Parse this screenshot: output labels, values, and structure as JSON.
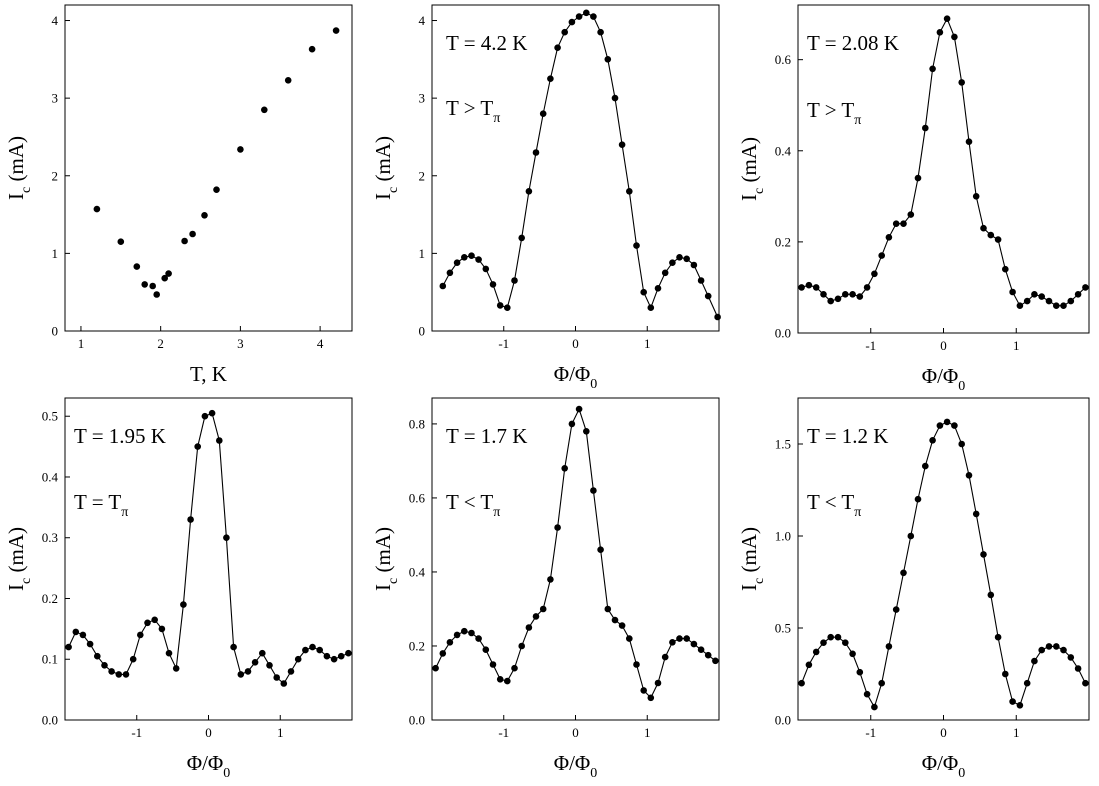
{
  "chart_data": [
    {
      "id": "a",
      "type": "scatter",
      "connect": false,
      "xlabel": {
        "main": "T, K"
      },
      "ylabel": {
        "main": "I",
        "sub": "c",
        "tail": " (mA)"
      },
      "xlim": [
        0.8,
        4.4
      ],
      "ylim": [
        0,
        4.2
      ],
      "xticks": [
        {
          "v": 1,
          "t": "1"
        },
        {
          "v": 2,
          "t": "2"
        },
        {
          "v": 3,
          "t": "3"
        },
        {
          "v": 4,
          "t": "4"
        }
      ],
      "yticks": [
        {
          "v": 0,
          "t": "0"
        },
        {
          "v": 1,
          "t": "1"
        },
        {
          "v": 2,
          "t": "2"
        },
        {
          "v": 3,
          "t": "3"
        },
        {
          "v": 4,
          "t": "4"
        }
      ],
      "annotations": [],
      "x": [
        1.2,
        1.5,
        1.7,
        1.8,
        1.9,
        1.95,
        2.05,
        2.1,
        2.3,
        2.4,
        2.55,
        2.7,
        3.0,
        3.3,
        3.6,
        3.9,
        4.2
      ],
      "y": [
        1.57,
        1.15,
        0.83,
        0.6,
        0.58,
        0.47,
        0.68,
        0.74,
        1.16,
        1.25,
        1.49,
        1.82,
        2.34,
        2.85,
        3.23,
        3.63,
        3.87
      ]
    },
    {
      "id": "b",
      "type": "line",
      "connect": true,
      "xlabel": {
        "main": "Φ/Φ",
        "sub": "0"
      },
      "ylabel": {
        "main": "I",
        "sub": "c",
        "tail": " (mA)"
      },
      "xlim": [
        -2.0,
        2.0
      ],
      "ylim": [
        0,
        4.2
      ],
      "xticks": [
        {
          "v": -1,
          "t": "-1"
        },
        {
          "v": 0,
          "t": "0"
        },
        {
          "v": 1,
          "t": "1"
        }
      ],
      "yticks": [
        {
          "v": 0,
          "t": "0"
        },
        {
          "v": 1,
          "t": "1"
        },
        {
          "v": 2,
          "t": "2"
        },
        {
          "v": 3,
          "t": "3"
        },
        {
          "v": 4,
          "t": "4"
        }
      ],
      "annotations": [
        {
          "main": "T = 4.2 K"
        },
        {
          "main": "T > T",
          "sub": "π"
        }
      ],
      "x": [
        -1.85,
        -1.75,
        -1.65,
        -1.55,
        -1.45,
        -1.35,
        -1.25,
        -1.15,
        -1.05,
        -0.95,
        -0.85,
        -0.75,
        -0.65,
        -0.55,
        -0.45,
        -0.35,
        -0.25,
        -0.15,
        -0.05,
        0.05,
        0.15,
        0.25,
        0.35,
        0.45,
        0.55,
        0.65,
        0.75,
        0.85,
        0.95,
        1.05,
        1.15,
        1.25,
        1.35,
        1.45,
        1.55,
        1.65,
        1.75,
        1.85,
        1.98
      ],
      "y": [
        0.58,
        0.75,
        0.88,
        0.95,
        0.97,
        0.92,
        0.8,
        0.6,
        0.33,
        0.3,
        0.65,
        1.2,
        1.8,
        2.3,
        2.8,
        3.25,
        3.65,
        3.85,
        3.98,
        4.05,
        4.1,
        4.05,
        3.85,
        3.5,
        3.0,
        2.4,
        1.8,
        1.1,
        0.5,
        0.3,
        0.55,
        0.75,
        0.88,
        0.95,
        0.93,
        0.85,
        0.65,
        0.45,
        0.18
      ]
    },
    {
      "id": "c",
      "type": "line",
      "connect": true,
      "xlabel": {
        "main": "Φ/Φ",
        "sub": "0"
      },
      "ylabel": {
        "main": "I",
        "sub": "c",
        "tail": " (mA)"
      },
      "xlim": [
        -2.0,
        2.0
      ],
      "ylim": [
        0,
        0.72
      ],
      "xticks": [
        {
          "v": -1,
          "t": "-1"
        },
        {
          "v": 0,
          "t": "0"
        },
        {
          "v": 1,
          "t": "1"
        }
      ],
      "yticks": [
        {
          "v": 0,
          "t": "0.0"
        },
        {
          "v": 0.2,
          "t": "0.2"
        },
        {
          "v": 0.4,
          "t": "0.4"
        },
        {
          "v": 0.6,
          "t": "0.6"
        }
      ],
      "annotations": [
        {
          "main": "T = 2.08 K"
        },
        {
          "main": "T > T",
          "sub": "π"
        }
      ],
      "x": [
        -1.95,
        -1.85,
        -1.75,
        -1.65,
        -1.55,
        -1.45,
        -1.35,
        -1.25,
        -1.15,
        -1.05,
        -0.95,
        -0.85,
        -0.75,
        -0.65,
        -0.55,
        -0.45,
        -0.35,
        -0.25,
        -0.15,
        -0.05,
        0.05,
        0.15,
        0.25,
        0.35,
        0.45,
        0.55,
        0.65,
        0.75,
        0.85,
        0.95,
        1.05,
        1.15,
        1.25,
        1.35,
        1.45,
        1.55,
        1.65,
        1.75,
        1.85,
        1.95
      ],
      "y": [
        0.1,
        0.105,
        0.1,
        0.085,
        0.07,
        0.075,
        0.085,
        0.085,
        0.08,
        0.1,
        0.13,
        0.17,
        0.21,
        0.24,
        0.24,
        0.26,
        0.34,
        0.45,
        0.58,
        0.66,
        0.69,
        0.65,
        0.55,
        0.42,
        0.3,
        0.23,
        0.215,
        0.205,
        0.14,
        0.09,
        0.06,
        0.07,
        0.085,
        0.08,
        0.07,
        0.06,
        0.06,
        0.07,
        0.085,
        0.1
      ]
    },
    {
      "id": "d",
      "type": "line",
      "connect": true,
      "xlabel": {
        "main": "Φ/Φ",
        "sub": "0"
      },
      "ylabel": {
        "main": "I",
        "sub": "c",
        "tail": " (mA)"
      },
      "xlim": [
        -2.0,
        2.0
      ],
      "ylim": [
        0,
        0.53
      ],
      "xticks": [
        {
          "v": -1,
          "t": "-1"
        },
        {
          "v": 0,
          "t": "0"
        },
        {
          "v": 1,
          "t": "1"
        }
      ],
      "yticks": [
        {
          "v": 0,
          "t": "0.0"
        },
        {
          "v": 0.1,
          "t": "0.1"
        },
        {
          "v": 0.2,
          "t": "0.2"
        },
        {
          "v": 0.3,
          "t": "0.3"
        },
        {
          "v": 0.4,
          "t": "0.4"
        },
        {
          "v": 0.5,
          "t": "0.5"
        }
      ],
      "annotations": [
        {
          "main": "T = 1.95 K"
        },
        {
          "main": "T = T",
          "sub": "π"
        }
      ],
      "x": [
        -1.95,
        -1.85,
        -1.75,
        -1.65,
        -1.55,
        -1.45,
        -1.35,
        -1.25,
        -1.15,
        -1.05,
        -0.95,
        -0.85,
        -0.75,
        -0.65,
        -0.55,
        -0.45,
        -0.35,
        -0.25,
        -0.15,
        -0.05,
        0.05,
        0.15,
        0.25,
        0.35,
        0.45,
        0.55,
        0.65,
        0.75,
        0.85,
        0.95,
        1.05,
        1.15,
        1.25,
        1.35,
        1.45,
        1.55,
        1.65,
        1.75,
        1.85,
        1.95
      ],
      "y": [
        0.12,
        0.145,
        0.14,
        0.125,
        0.105,
        0.09,
        0.08,
        0.075,
        0.075,
        0.1,
        0.14,
        0.16,
        0.165,
        0.15,
        0.11,
        0.085,
        0.19,
        0.33,
        0.45,
        0.5,
        0.505,
        0.46,
        0.3,
        0.12,
        0.075,
        0.08,
        0.095,
        0.11,
        0.09,
        0.07,
        0.06,
        0.08,
        0.1,
        0.115,
        0.12,
        0.115,
        0.105,
        0.1,
        0.105,
        0.11
      ]
    },
    {
      "id": "e",
      "type": "line",
      "connect": true,
      "xlabel": {
        "main": "Φ/Φ",
        "sub": "0"
      },
      "ylabel": {
        "main": "I",
        "sub": "c",
        "tail": " (mA)"
      },
      "xlim": [
        -2.0,
        2.0
      ],
      "ylim": [
        0,
        0.87
      ],
      "xticks": [
        {
          "v": -1,
          "t": "-1"
        },
        {
          "v": 0,
          "t": "0"
        },
        {
          "v": 1,
          "t": "1"
        }
      ],
      "yticks": [
        {
          "v": 0,
          "t": "0.0"
        },
        {
          "v": 0.2,
          "t": "0.2"
        },
        {
          "v": 0.4,
          "t": "0.4"
        },
        {
          "v": 0.6,
          "t": "0.6"
        },
        {
          "v": 0.8,
          "t": "0.8"
        }
      ],
      "annotations": [
        {
          "main": "T = 1.7 K"
        },
        {
          "main": "T < T",
          "sub": "π"
        }
      ],
      "x": [
        -1.95,
        -1.85,
        -1.75,
        -1.65,
        -1.55,
        -1.45,
        -1.35,
        -1.25,
        -1.15,
        -1.05,
        -0.95,
        -0.85,
        -0.75,
        -0.65,
        -0.55,
        -0.45,
        -0.35,
        -0.25,
        -0.15,
        -0.05,
        0.05,
        0.15,
        0.25,
        0.35,
        0.45,
        0.55,
        0.65,
        0.75,
        0.85,
        0.95,
        1.05,
        1.15,
        1.25,
        1.35,
        1.45,
        1.55,
        1.65,
        1.75,
        1.85,
        1.95
      ],
      "y": [
        0.14,
        0.18,
        0.21,
        0.23,
        0.24,
        0.235,
        0.22,
        0.19,
        0.15,
        0.11,
        0.105,
        0.14,
        0.2,
        0.25,
        0.28,
        0.3,
        0.38,
        0.52,
        0.68,
        0.8,
        0.84,
        0.78,
        0.62,
        0.46,
        0.3,
        0.27,
        0.255,
        0.22,
        0.15,
        0.08,
        0.06,
        0.1,
        0.17,
        0.21,
        0.22,
        0.22,
        0.205,
        0.19,
        0.175,
        0.16
      ]
    },
    {
      "id": "f",
      "type": "line",
      "connect": true,
      "xlabel": {
        "main": "Φ/Φ",
        "sub": "0"
      },
      "ylabel": {
        "main": "I",
        "sub": "c",
        "tail": " (mA)"
      },
      "xlim": [
        -2.0,
        2.0
      ],
      "ylim": [
        0,
        1.75
      ],
      "xticks": [
        {
          "v": -1,
          "t": "-1"
        },
        {
          "v": 0,
          "t": "0"
        },
        {
          "v": 1,
          "t": "1"
        }
      ],
      "yticks": [
        {
          "v": 0,
          "t": "0.0"
        },
        {
          "v": 0.5,
          "t": "0.5"
        },
        {
          "v": 1.0,
          "t": "1.0"
        },
        {
          "v": 1.5,
          "t": "1.5"
        }
      ],
      "annotations": [
        {
          "main": "T = 1.2 K"
        },
        {
          "main": "T < T",
          "sub": "π"
        }
      ],
      "x": [
        -1.95,
        -1.85,
        -1.75,
        -1.65,
        -1.55,
        -1.45,
        -1.35,
        -1.25,
        -1.15,
        -1.05,
        -0.95,
        -0.85,
        -0.75,
        -0.65,
        -0.55,
        -0.45,
        -0.35,
        -0.25,
        -0.15,
        -0.05,
        0.05,
        0.15,
        0.25,
        0.35,
        0.45,
        0.55,
        0.65,
        0.75,
        0.85,
        0.95,
        1.05,
        1.15,
        1.25,
        1.35,
        1.45,
        1.55,
        1.65,
        1.75,
        1.85,
        1.95
      ],
      "y": [
        0.2,
        0.3,
        0.37,
        0.42,
        0.45,
        0.45,
        0.42,
        0.36,
        0.26,
        0.14,
        0.07,
        0.2,
        0.4,
        0.6,
        0.8,
        1.0,
        1.2,
        1.38,
        1.52,
        1.6,
        1.62,
        1.6,
        1.5,
        1.33,
        1.12,
        0.9,
        0.68,
        0.45,
        0.25,
        0.1,
        0.08,
        0.2,
        0.32,
        0.38,
        0.4,
        0.4,
        0.38,
        0.34,
        0.28,
        0.2
      ]
    }
  ]
}
